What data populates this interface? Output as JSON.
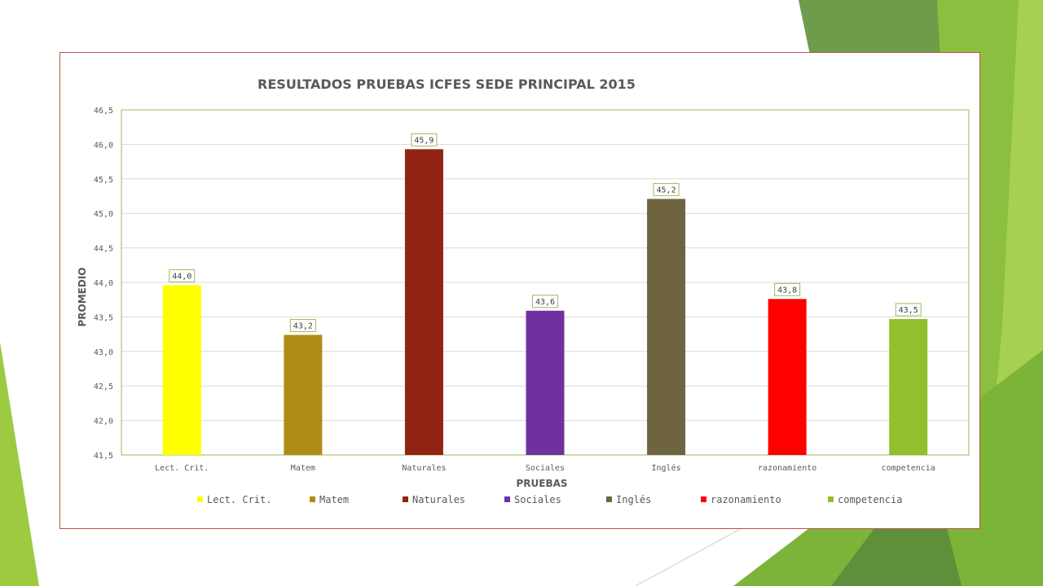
{
  "colors": {
    "accent_green_light": "#9ccb42",
    "accent_green_mid": "#7fb331",
    "accent_green_dark": "#5a8a3a",
    "frame_border": "#c0504d",
    "plot_border": "#9bbb59",
    "gridline": "#d9d9d9"
  },
  "chart_data": {
    "type": "bar",
    "title": "RESULTADOS PRUEBAS ICFES  SEDE PRINCIPAL 2015",
    "xlabel": "PRUEBAS",
    "ylabel": "PROMEDIO",
    "ylim": [
      41.5,
      46.5
    ],
    "yticks": [
      "41,5",
      "42,0",
      "42,5",
      "43,0",
      "43,5",
      "44,0",
      "44,5",
      "45,0",
      "45,5",
      "46,0",
      "46,5"
    ],
    "grid": true,
    "legend_position": "bottom",
    "categories": [
      "Lect. Crit.",
      "Matem",
      "Naturales",
      "Sociales",
      "Inglés",
      "razonamiento",
      "competencia"
    ],
    "values": [
      43.96,
      43.24,
      45.93,
      43.59,
      45.21,
      43.76,
      43.47
    ],
    "data_labels": [
      "44,0",
      "43,2",
      "45,9",
      "43,6",
      "45,2",
      "43,8",
      "43,5"
    ],
    "bar_colors": [
      "#ffff00",
      "#b08c14",
      "#922413",
      "#7030a0",
      "#6e6540",
      "#ff0000",
      "#92c02c"
    ],
    "series": [
      {
        "name": "Lect. Crit.",
        "color": "#ffff00"
      },
      {
        "name": "Matem",
        "color": "#b08c14"
      },
      {
        "name": "Naturales",
        "color": "#922413"
      },
      {
        "name": "Sociales",
        "color": "#7030a0"
      },
      {
        "name": "Inglés",
        "color": "#6e6540"
      },
      {
        "name": "razonamiento",
        "color": "#ff0000"
      },
      {
        "name": "competencia",
        "color": "#92c02c"
      }
    ]
  }
}
